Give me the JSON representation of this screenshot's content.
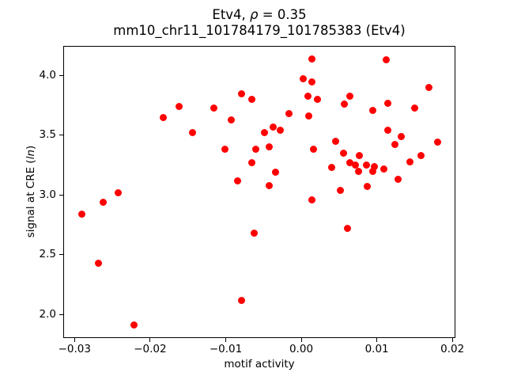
{
  "chart_data": {
    "type": "scatter",
    "title": "Etv4, ρ = 0.35",
    "title_parts": {
      "pre": "Etv4, ",
      "rho": "ρ",
      "post": " = 0.35"
    },
    "rho": 0.35,
    "subtitle": "mm10_chr11_101784179_101785383 (Etv4)",
    "xlabel": "motif activity",
    "ylabel": "signal at CRE (ln)",
    "ylabel_parts": {
      "pre": "signal at CRE (",
      "italic": "ln",
      "post": ")"
    },
    "marker_color": "#ff0000",
    "grid": false,
    "legend": "none",
    "xlim": [
      -0.0315,
      0.0204
    ],
    "ylim": [
      1.8,
      4.25
    ],
    "xticks": [
      {
        "v": -0.03,
        "label": "−0.03"
      },
      {
        "v": -0.02,
        "label": "−0.02"
      },
      {
        "v": -0.01,
        "label": "−0.01"
      },
      {
        "v": 0.0,
        "label": "0.00"
      },
      {
        "v": 0.01,
        "label": "0.01"
      },
      {
        "v": 0.02,
        "label": "0.02"
      }
    ],
    "yticks": [
      {
        "v": 2.0,
        "label": "2.0"
      },
      {
        "v": 2.5,
        "label": "2.5"
      },
      {
        "v": 3.0,
        "label": "3.0"
      },
      {
        "v": 3.5,
        "label": "3.5"
      },
      {
        "v": 4.0,
        "label": "4.0"
      }
    ],
    "points": [
      [
        -0.0162,
        3.74
      ],
      [
        -0.0183,
        3.65
      ],
      [
        -0.0144,
        3.52
      ],
      [
        0.0014,
        4.14
      ],
      [
        0.0002,
        3.97
      ],
      [
        0.0014,
        3.95
      ],
      [
        -0.0079,
        3.85
      ],
      [
        -0.0066,
        3.8
      ],
      [
        0.0009,
        3.83
      ],
      [
        0.0021,
        3.8
      ],
      [
        -0.0116,
        3.73
      ],
      [
        -0.0093,
        3.63
      ],
      [
        -0.0016,
        3.68
      ],
      [
        0.001,
        3.66
      ],
      [
        -0.0037,
        3.57
      ],
      [
        -0.0028,
        3.54
      ],
      [
        -0.0049,
        3.52
      ],
      [
        -0.0101,
        3.38
      ],
      [
        -0.006,
        3.38
      ],
      [
        -0.0042,
        3.4
      ],
      [
        0.0016,
        3.38
      ],
      [
        -0.0065,
        3.27
      ],
      [
        -0.0034,
        3.19
      ],
      [
        -0.0084,
        3.12
      ],
      [
        -0.0042,
        3.08
      ],
      [
        0.0112,
        4.13
      ],
      [
        0.0169,
        3.9
      ],
      [
        0.0064,
        3.83
      ],
      [
        0.0057,
        3.76
      ],
      [
        0.0114,
        3.77
      ],
      [
        0.0095,
        3.71
      ],
      [
        0.015,
        3.73
      ],
      [
        0.0115,
        3.54
      ],
      [
        0.0132,
        3.49
      ],
      [
        0.0124,
        3.42
      ],
      [
        0.0045,
        3.45
      ],
      [
        0.018,
        3.44
      ],
      [
        0.0056,
        3.35
      ],
      [
        0.0077,
        3.33
      ],
      [
        0.0064,
        3.27
      ],
      [
        0.0072,
        3.25
      ],
      [
        0.0086,
        3.25
      ],
      [
        0.0097,
        3.24
      ],
      [
        0.0109,
        3.22
      ],
      [
        0.004,
        3.23
      ],
      [
        0.0076,
        3.2
      ],
      [
        0.0095,
        3.2
      ],
      [
        0.0144,
        3.28
      ],
      [
        0.0158,
        3.33
      ],
      [
        0.0128,
        3.13
      ],
      [
        0.0087,
        3.07
      ],
      [
        -0.0242,
        3.02
      ],
      [
        -0.0262,
        2.94
      ],
      [
        -0.029,
        2.84
      ],
      [
        -0.0268,
        2.43
      ],
      [
        -0.0221,
        1.91
      ],
      [
        0.0014,
        2.96
      ],
      [
        -0.0062,
        2.68
      ],
      [
        -0.0079,
        2.12
      ],
      [
        0.0052,
        3.04
      ],
      [
        0.0061,
        2.72
      ]
    ]
  }
}
